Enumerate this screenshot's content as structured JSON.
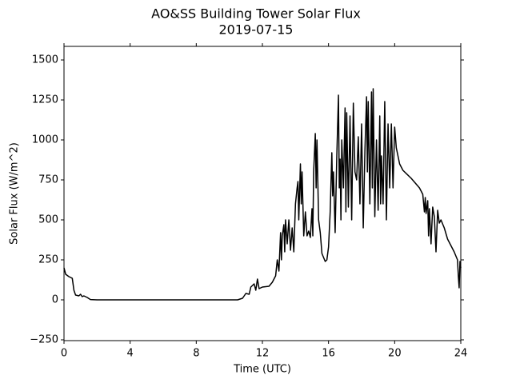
{
  "chart_data": {
    "type": "line",
    "title": "AO&SS Building Tower Solar Flux",
    "subtitle": "2019-07-15",
    "xlabel": "Time (UTC)",
    "ylabel": "Solar Flux (W/m^2)",
    "xlim": [
      0,
      24
    ],
    "xticks": [
      0,
      4,
      8,
      12,
      16,
      20,
      24
    ],
    "ylim": [
      -255,
      1585
    ],
    "yticks": [
      {
        "value": -250,
        "label": "−250"
      },
      0,
      250,
      500,
      750,
      1000,
      1250,
      1500
    ],
    "series": [
      {
        "color": "#000000",
        "x": [
          0,
          0.1,
          0.3,
          0.5,
          0.6,
          0.7,
          0.9,
          1.0,
          1.1,
          1.2,
          1.4,
          1.6,
          2,
          10.5,
          10.8,
          11,
          11.2,
          11.3,
          11.5,
          11.6,
          11.7,
          11.8,
          12,
          12.4,
          12.6,
          12.8,
          12.9,
          13.0,
          13.1,
          13.15,
          13.2,
          13.3,
          13.35,
          13.4,
          13.5,
          13.6,
          13.7,
          13.8,
          13.9,
          14.0,
          14.1,
          14.15,
          14.2,
          14.3,
          14.35,
          14.4,
          14.5,
          14.6,
          14.7,
          14.8,
          14.9,
          15.0,
          15.05,
          15.1,
          15.2,
          15.25,
          15.3,
          15.4,
          15.5,
          15.6,
          15.8,
          15.9,
          16.0,
          16.1,
          16.2,
          16.25,
          16.3,
          16.4,
          16.5,
          16.6,
          16.65,
          16.7,
          16.75,
          16.8,
          16.9,
          17.0,
          17.05,
          17.1,
          17.2,
          17.3,
          17.4,
          17.5,
          17.6,
          17.7,
          17.8,
          17.9,
          18.0,
          18.1,
          18.2,
          18.3,
          18.35,
          18.4,
          18.5,
          18.6,
          18.65,
          18.7,
          18.8,
          18.9,
          19.0,
          19.1,
          19.15,
          19.2,
          19.3,
          19.4,
          19.5,
          19.6,
          19.7,
          19.8,
          19.9,
          20.0,
          20.1,
          20.3,
          20.5,
          21.0,
          21.5,
          21.7,
          21.8,
          21.85,
          21.9,
          22.0,
          22.05,
          22.1,
          22.2,
          22.3,
          22.4,
          22.5,
          22.6,
          22.7,
          22.8,
          23.0,
          23.2,
          23.4,
          23.6,
          23.8,
          23.85,
          23.9,
          23.95,
          24.0
        ],
        "values": [
          200,
          160,
          145,
          135,
          60,
          30,
          25,
          35,
          20,
          25,
          15,
          2,
          0,
          0,
          10,
          40,
          35,
          80,
          100,
          60,
          130,
          70,
          80,
          85,
          110,
          150,
          250,
          180,
          420,
          250,
          400,
          470,
          300,
          500,
          350,
          500,
          310,
          450,
          300,
          600,
          700,
          740,
          500,
          850,
          600,
          800,
          400,
          550,
          400,
          430,
          390,
          570,
          400,
          800,
          1040,
          700,
          1000,
          500,
          420,
          290,
          240,
          250,
          330,
          550,
          920,
          650,
          800,
          420,
          900,
          1280,
          700,
          880,
          500,
          1000,
          700,
          1200,
          550,
          1170,
          580,
          1150,
          500,
          1230,
          800,
          750,
          1020,
          600,
          1100,
          450,
          930,
          1270,
          800,
          1240,
          600,
          1300,
          700,
          1320,
          520,
          1000,
          560,
          1150,
          600,
          900,
          600,
          1240,
          500,
          1100,
          700,
          1100,
          700,
          1080,
          950,
          850,
          810,
          760,
          700,
          660,
          550,
          640,
          540,
          620,
          400,
          570,
          350,
          580,
          520,
          300,
          560,
          480,
          500,
          450,
          380,
          340,
          300,
          250,
          150,
          75,
          240,
          200
        ]
      }
    ]
  }
}
